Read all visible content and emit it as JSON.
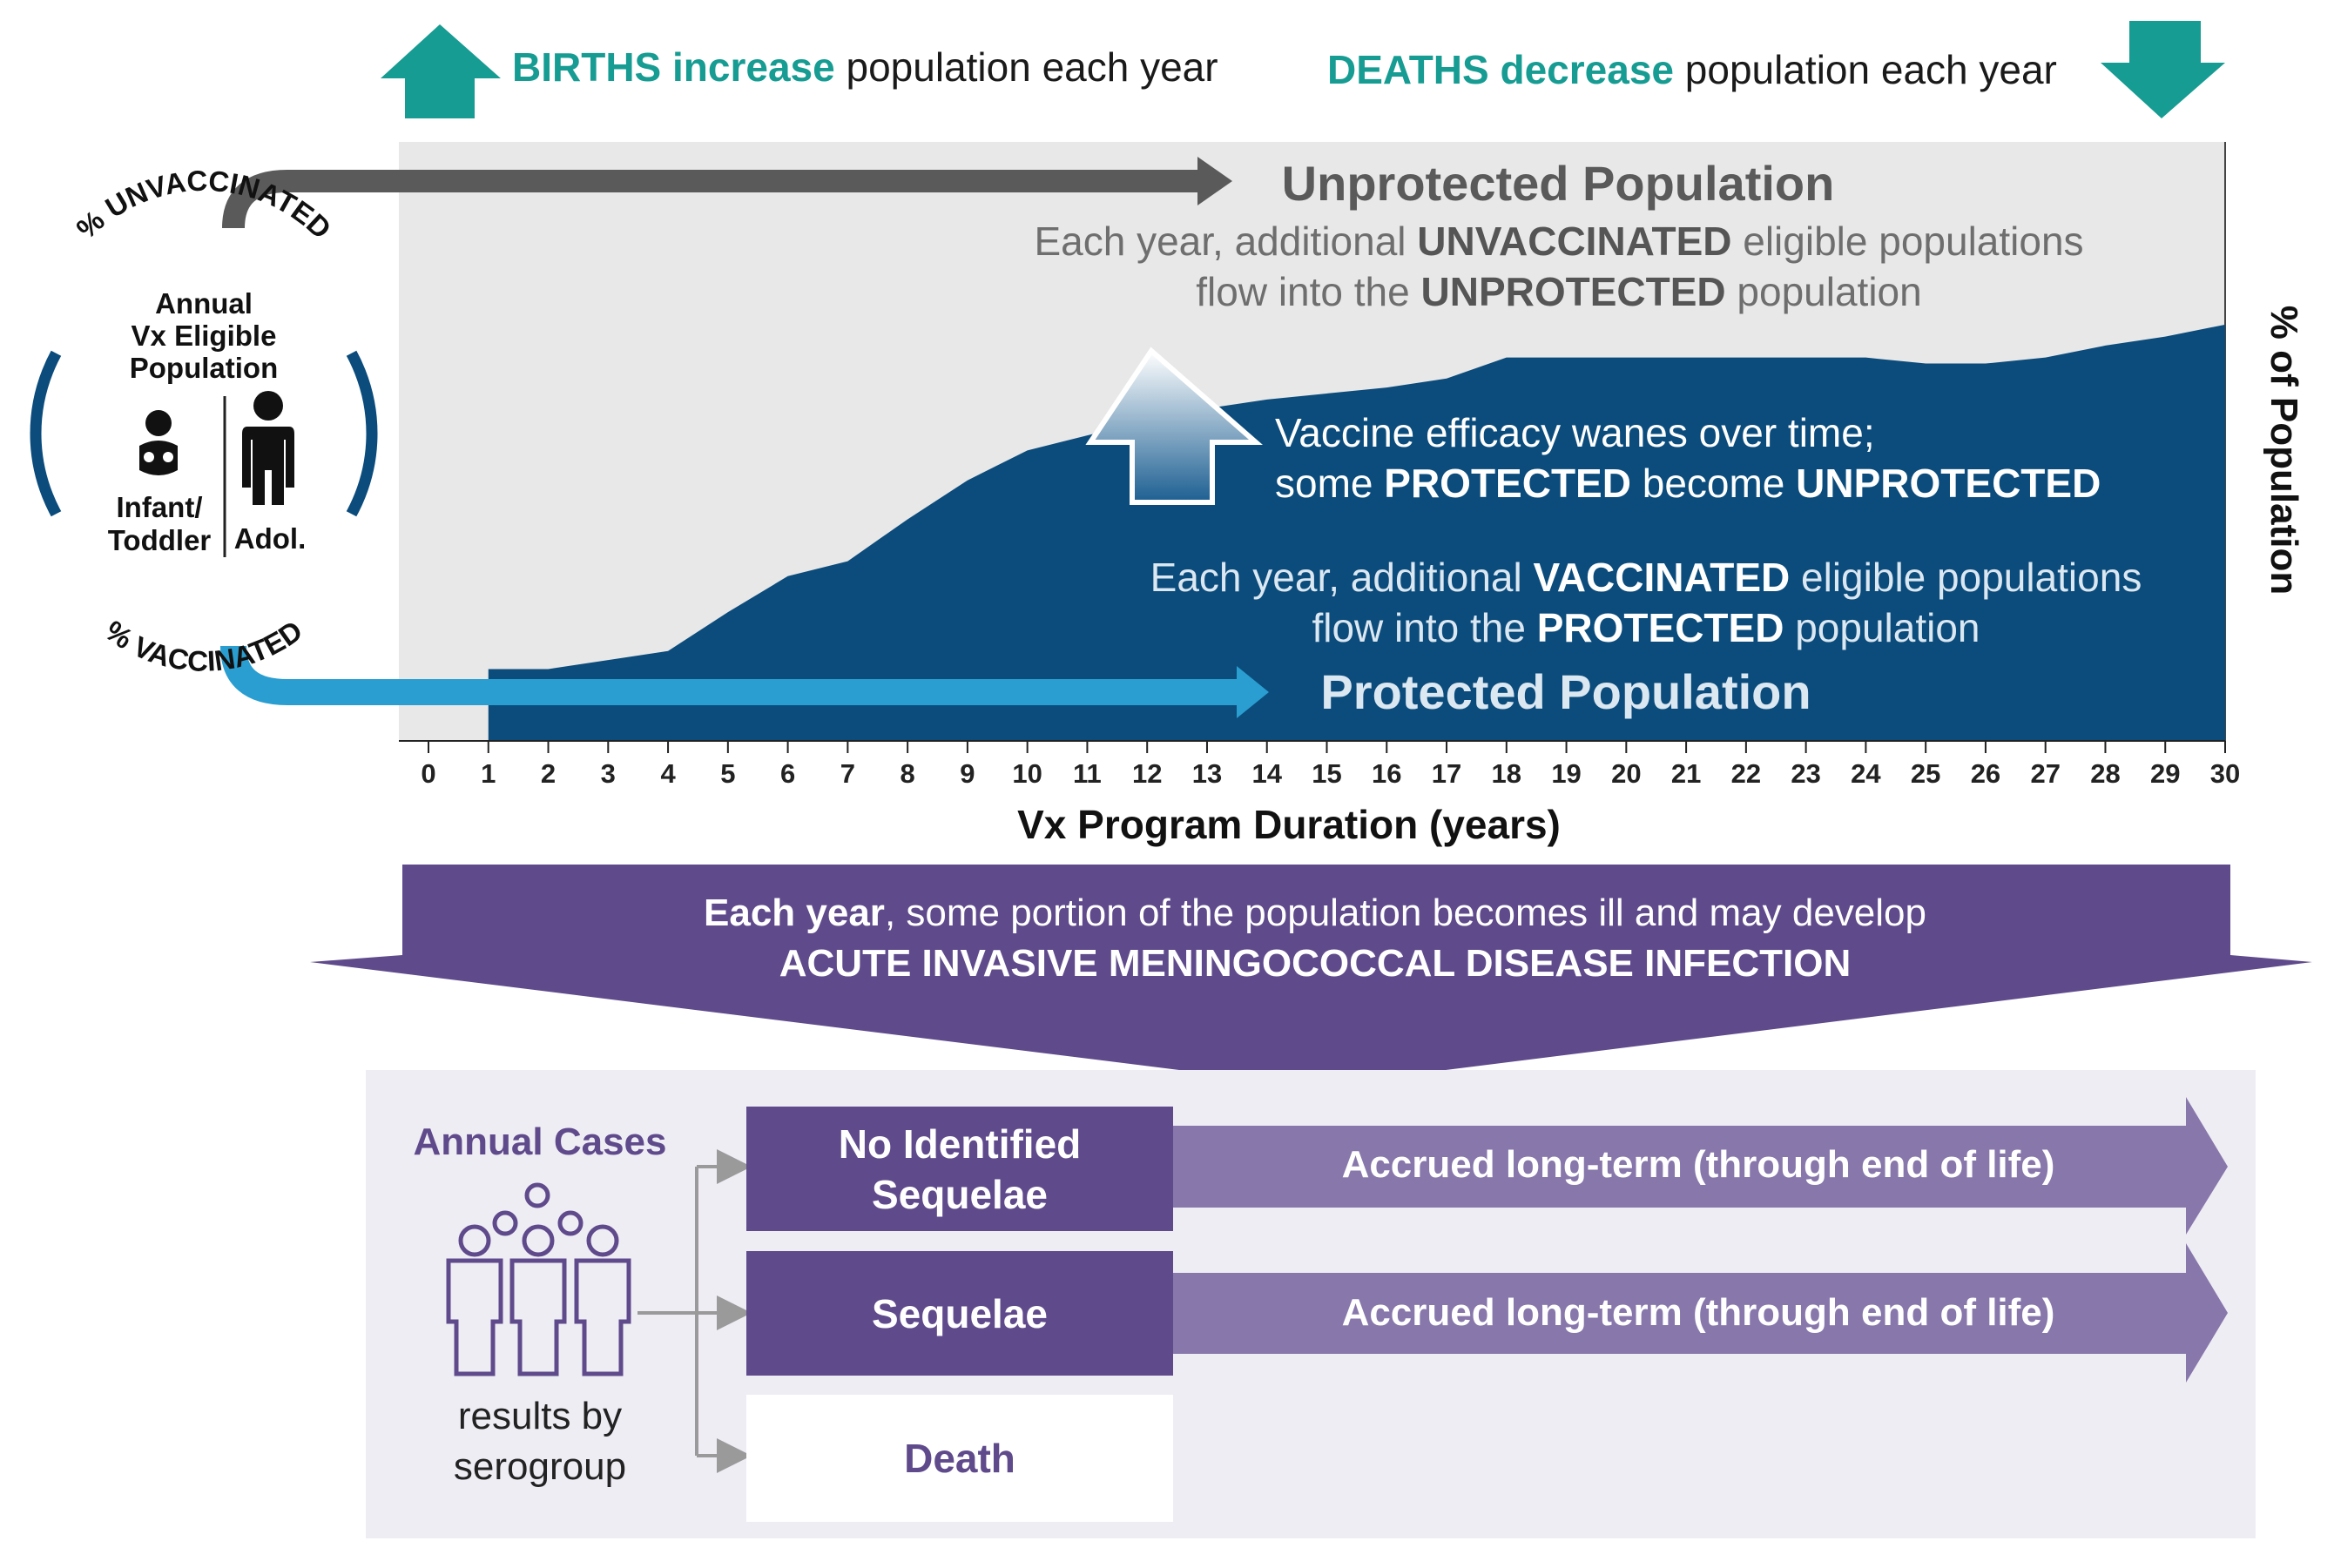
{
  "header": {
    "births_bold": "BIRTHS increase",
    "births_rest": " population each year",
    "deaths_bold": "DEATHS decrease",
    "deaths_rest": " population each year"
  },
  "chart_data": {
    "type": "area",
    "title": "",
    "xlabel": "Vx Program Duration (years)",
    "ylabel": "% of Population",
    "xlim": [
      0,
      30
    ],
    "ylim": [
      0,
      100
    ],
    "x": [
      0,
      1,
      2,
      3,
      4,
      5,
      6,
      7,
      8,
      9,
      10,
      11,
      12,
      13,
      14,
      15,
      16,
      17,
      18,
      19,
      20,
      21,
      22,
      23,
      24,
      25,
      26,
      27,
      28,
      29,
      30
    ],
    "x_tick_labels": [
      "0",
      "1",
      "2",
      "3",
      "4",
      "5",
      "6",
      "7",
      "8",
      "9",
      "10",
      "11",
      "12",
      "13",
      "14",
      "15",
      "16",
      "17",
      "18",
      "19",
      "20",
      "21",
      "22",
      "23",
      "24",
      "25",
      "26",
      "27",
      "28",
      "29",
      "30"
    ],
    "series": [
      {
        "name": "Protected Population",
        "values": [
          0,
          12,
          12,
          13.5,
          15,
          21.5,
          27.5,
          30,
          37,
          43.5,
          48.5,
          51,
          53.5,
          55.5,
          57,
          58,
          59,
          60.5,
          64,
          64,
          64,
          64,
          64,
          64,
          64,
          63,
          63,
          64,
          66,
          67.5,
          69.5
        ]
      }
    ]
  },
  "unprotected": {
    "title": "Unprotected Population",
    "line1_a": "Each year, additional ",
    "line1_b": "UNVACCINATED",
    "line1_c": " eligible populations",
    "line2_a": "flow into the ",
    "line2_b": "UNPROTECTED",
    "line2_c": " population"
  },
  "waning": {
    "line1": "Vaccine efficacy wanes over time;",
    "line2_a": "some ",
    "line2_b": "PROTECTED",
    "line2_c": " become ",
    "line2_d": "UNPROTECTED"
  },
  "protected": {
    "title": "Protected Population",
    "line1_a": "Each year, additional ",
    "line1_b": "VACCINATED",
    "line1_c": " eligible populations",
    "line2_a": "flow into the ",
    "line2_b": "PROTECTED",
    "line2_c": " population"
  },
  "circle": {
    "top_arc": "% UNVACCINATED",
    "bottom_arc": "% VACCINATED",
    "line1": "Annual",
    "line2": "Vx Eligible",
    "line3": "Population",
    "infant_label_1": "Infant/",
    "infant_label_2": "Toddler",
    "adol_label": "Adol."
  },
  "banner": {
    "line1_bold": "Each year",
    "line1_rest": ", some portion of the population becomes ill and may develop",
    "line2": "ACUTE INVASIVE MENINGOCOCCAL DISEASE INFECTION"
  },
  "outcomes": {
    "annual_cases": "Annual Cases",
    "results_1": "results by",
    "results_2": "serogroup",
    "no_seq_1": "No Identified",
    "no_seq_2": "Sequelae",
    "seq": "Sequelae",
    "death": "Death",
    "accrued_1": "Accrued long-term (through end of life)",
    "accrued_2": "Accrued long-term (through end of life)"
  },
  "colors": {
    "teal": "#169c92",
    "navy": "#0b4c7c",
    "light_blue": "#2a9ed0",
    "gray_bg": "#e8e8e8",
    "purple": "#5f4a8b",
    "purple_light": "#8777ab",
    "lavender": "#efedf4"
  }
}
